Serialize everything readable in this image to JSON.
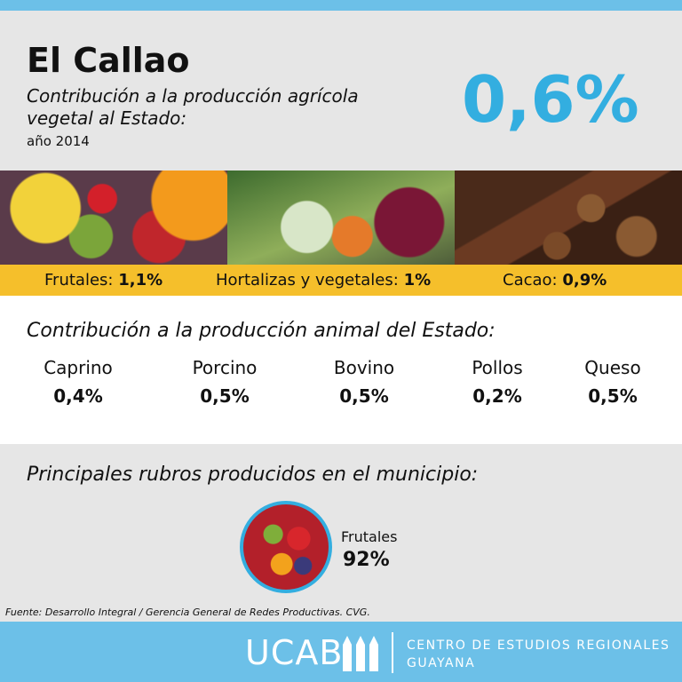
{
  "header": {
    "title": "El Callao",
    "subtitle_line1": "Contribución a la producción agrícola",
    "subtitle_line2": "vegetal al Estado:",
    "year": "año 2014",
    "total": "0,6%"
  },
  "vegetal": [
    {
      "label": "Frutales:",
      "value": "1,1%"
    },
    {
      "label": "Hortalizas y vegetales:",
      "value": "1%"
    },
    {
      "label": "Cacao:",
      "value": "0,9%"
    }
  ],
  "animal": {
    "heading": "Contribución a la producción animal del Estado:",
    "items": [
      {
        "label": "Caprino",
        "value": "0,4%"
      },
      {
        "label": "Porcino",
        "value": "0,5%"
      },
      {
        "label": "Bovino",
        "value": "0,5%"
      },
      {
        "label": "Pollos",
        "value": "0,2%"
      },
      {
        "label": "Queso",
        "value": "0,5%"
      }
    ]
  },
  "rubros": {
    "heading": "Principales rubros producidos en el municipio:",
    "items": [
      {
        "label": "Frutales",
        "value": "92%"
      }
    ]
  },
  "source": "Fuente: Desarrollo Integral / Gerencia General de Redes Productivas. CVG.",
  "footer": {
    "logo": "UCAB",
    "org_line1": "CENTRO DE ESTUDIOS REGIONALES",
    "org_line2": "GUAYANA"
  }
}
